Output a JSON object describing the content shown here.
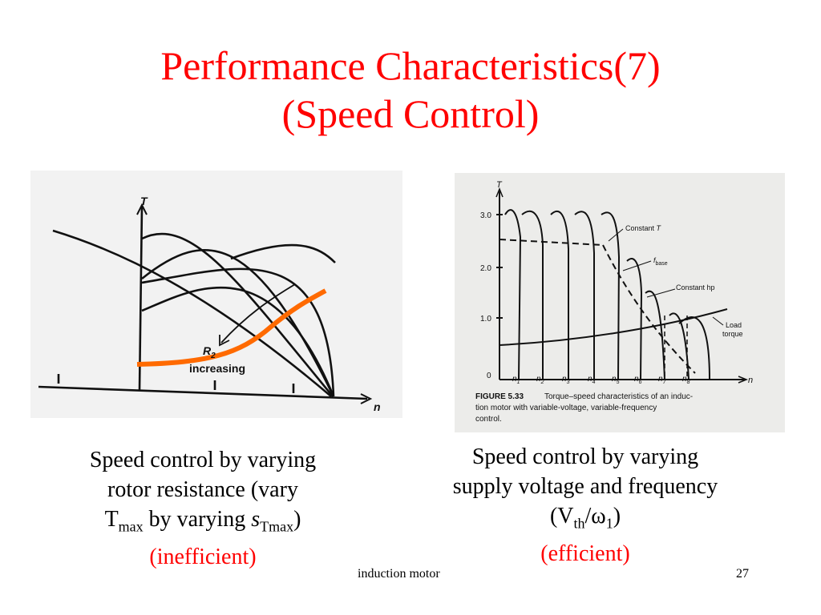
{
  "slide": {
    "title_line1": "Performance Characteristics(7)",
    "title_line2": "(Speed Control)",
    "footer_text": "induction motor",
    "page_number": "27"
  },
  "left_figure": {
    "axis_t": "T",
    "axis_n": "n",
    "r2_label": "R",
    "r2_sub": "2",
    "increasing_label": "increasing"
  },
  "right_figure": {
    "axis_t": "T",
    "axis_n": "n",
    "y_ticks": [
      "3.0",
      "2.0",
      "1.0",
      "0"
    ],
    "n_labels": [
      "n",
      "n",
      "n",
      "n",
      "n",
      "n",
      "n",
      "n"
    ],
    "n_subs": [
      "1",
      "2",
      "3",
      "4",
      "5",
      "6",
      "7",
      "8"
    ],
    "constant_t": "Constant",
    "constant_t_italic": "T",
    "fbase": "f",
    "fbase_sub": "base",
    "constant_hp": "Constant hp",
    "load_line1": "Load",
    "load_line2": "torque",
    "figure_label": "FIGURE 5.33",
    "figure_caption1": "Torque–speed characteristics of an induc-",
    "figure_caption2": "tion motor with variable-voltage, variable-frequency",
    "figure_caption3": "control."
  },
  "left_caption": {
    "line1": "Speed control by varying",
    "line2": "rotor resistance (vary",
    "line3_a": "T",
    "line3_sub1": "max",
    "line3_b": " by varying ",
    "line3_s": "s",
    "line3_sub2": "Tmax",
    "line3_c": ")",
    "line4": "(inefficient)"
  },
  "right_caption": {
    "line1": "Speed control by varying",
    "line2": "supply voltage and frequency",
    "line3_a": "(V",
    "line3_sub1": "th",
    "line3_b": "/ω",
    "line3_sub2": "1",
    "line3_c": ")",
    "line4": "(efficient)"
  },
  "colors": {
    "title": "#ff0000",
    "highlight_curve": "#ff6a00",
    "caption_note": "#ff0000"
  }
}
